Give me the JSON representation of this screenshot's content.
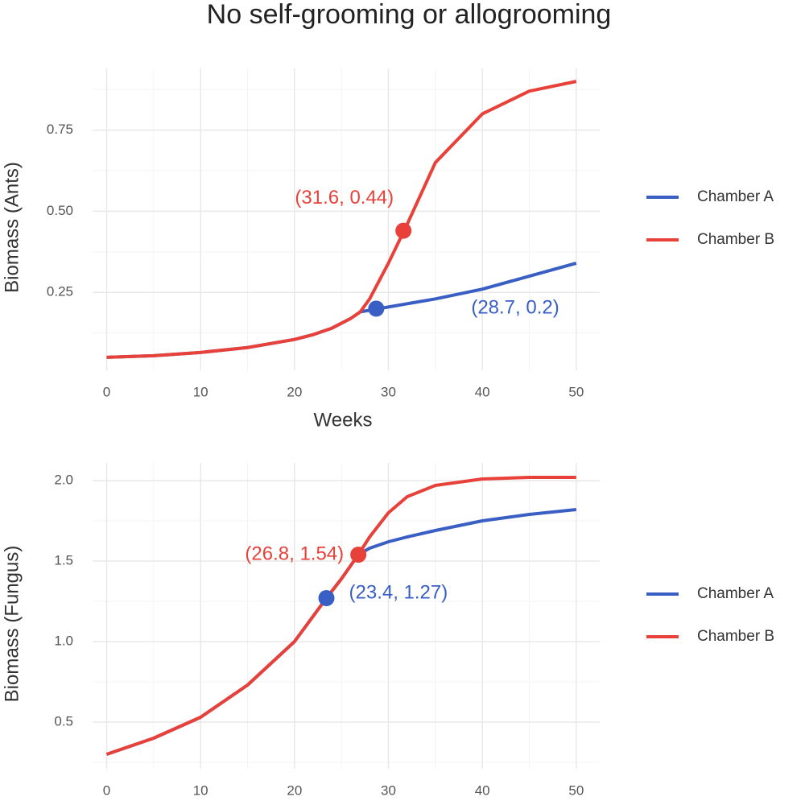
{
  "title": "No self-grooming or allogrooming",
  "chart_data": [
    {
      "type": "line",
      "xlabel": "Weeks",
      "ylabel": "Biomass (Ants)",
      "xlim": [
        -1.5,
        52.5
      ],
      "ylim": [
        0.01,
        0.94
      ],
      "xticks": [
        0,
        10,
        20,
        30,
        40,
        50
      ],
      "yticks": [
        0.25,
        {
          "value": 0.5,
          "label": "0.50"
        },
        0.75
      ],
      "grid": true,
      "x": [
        0,
        5,
        10,
        15,
        20,
        22,
        24,
        26,
        27,
        28,
        30,
        32,
        35,
        40,
        45,
        50
      ],
      "series": [
        {
          "name": "Chamber A",
          "color": "#3a5fc4",
          "values": [
            0.05,
            0.055,
            0.065,
            0.08,
            0.105,
            0.12,
            0.14,
            0.17,
            0.19,
            0.195,
            0.205,
            0.215,
            0.23,
            0.26,
            0.3,
            0.34
          ]
        },
        {
          "name": "Chamber B",
          "color": "#e8413a",
          "values": [
            0.05,
            0.055,
            0.065,
            0.08,
            0.105,
            0.12,
            0.14,
            0.17,
            0.19,
            0.23,
            0.34,
            0.46,
            0.65,
            0.8,
            0.87,
            0.9
          ]
        }
      ],
      "annotations": [
        {
          "x": 31.6,
          "y": 0.44,
          "label": "(31.6, 0.44)",
          "color": "#e8413a"
        },
        {
          "x": 28.7,
          "y": 0.2,
          "label": "(28.7, 0.2)",
          "color": "#3a5fc4"
        }
      ]
    },
    {
      "type": "line",
      "ylabel": "Biomass (Fungus)",
      "xlim": [
        -1.5,
        52.5
      ],
      "ylim": [
        0.21,
        2.11
      ],
      "xticks": [
        0,
        10,
        20,
        30,
        40,
        50
      ],
      "yticks": [
        0.5,
        {
          "value": 1,
          "label": "1.0"
        },
        {
          "value": 1.5,
          "label": "1.5"
        },
        {
          "value": 2,
          "label": "2.0"
        }
      ],
      "grid": true,
      "x": [
        0,
        5,
        10,
        15,
        20,
        23.4,
        25,
        26.8,
        28,
        30,
        32,
        35,
        40,
        45,
        50
      ],
      "series": [
        {
          "name": "Chamber A",
          "color": "#3a5fc4",
          "values": [
            0.3,
            0.4,
            0.53,
            0.73,
            1.0,
            1.27,
            1.39,
            1.54,
            1.58,
            1.62,
            1.65,
            1.69,
            1.75,
            1.79,
            1.82
          ]
        },
        {
          "name": "Chamber B",
          "color": "#e8413a",
          "values": [
            0.3,
            0.4,
            0.53,
            0.73,
            1.0,
            1.27,
            1.39,
            1.54,
            1.65,
            1.8,
            1.9,
            1.97,
            2.01,
            2.02,
            2.02
          ]
        }
      ],
      "annotations": [
        {
          "x": 26.8,
          "y": 1.54,
          "label": "(26.8, 1.54)",
          "color": "#e8413a"
        },
        {
          "x": 23.4,
          "y": 1.27,
          "label": "(23.4, 1.27)",
          "color": "#3a5fc4"
        }
      ]
    }
  ]
}
